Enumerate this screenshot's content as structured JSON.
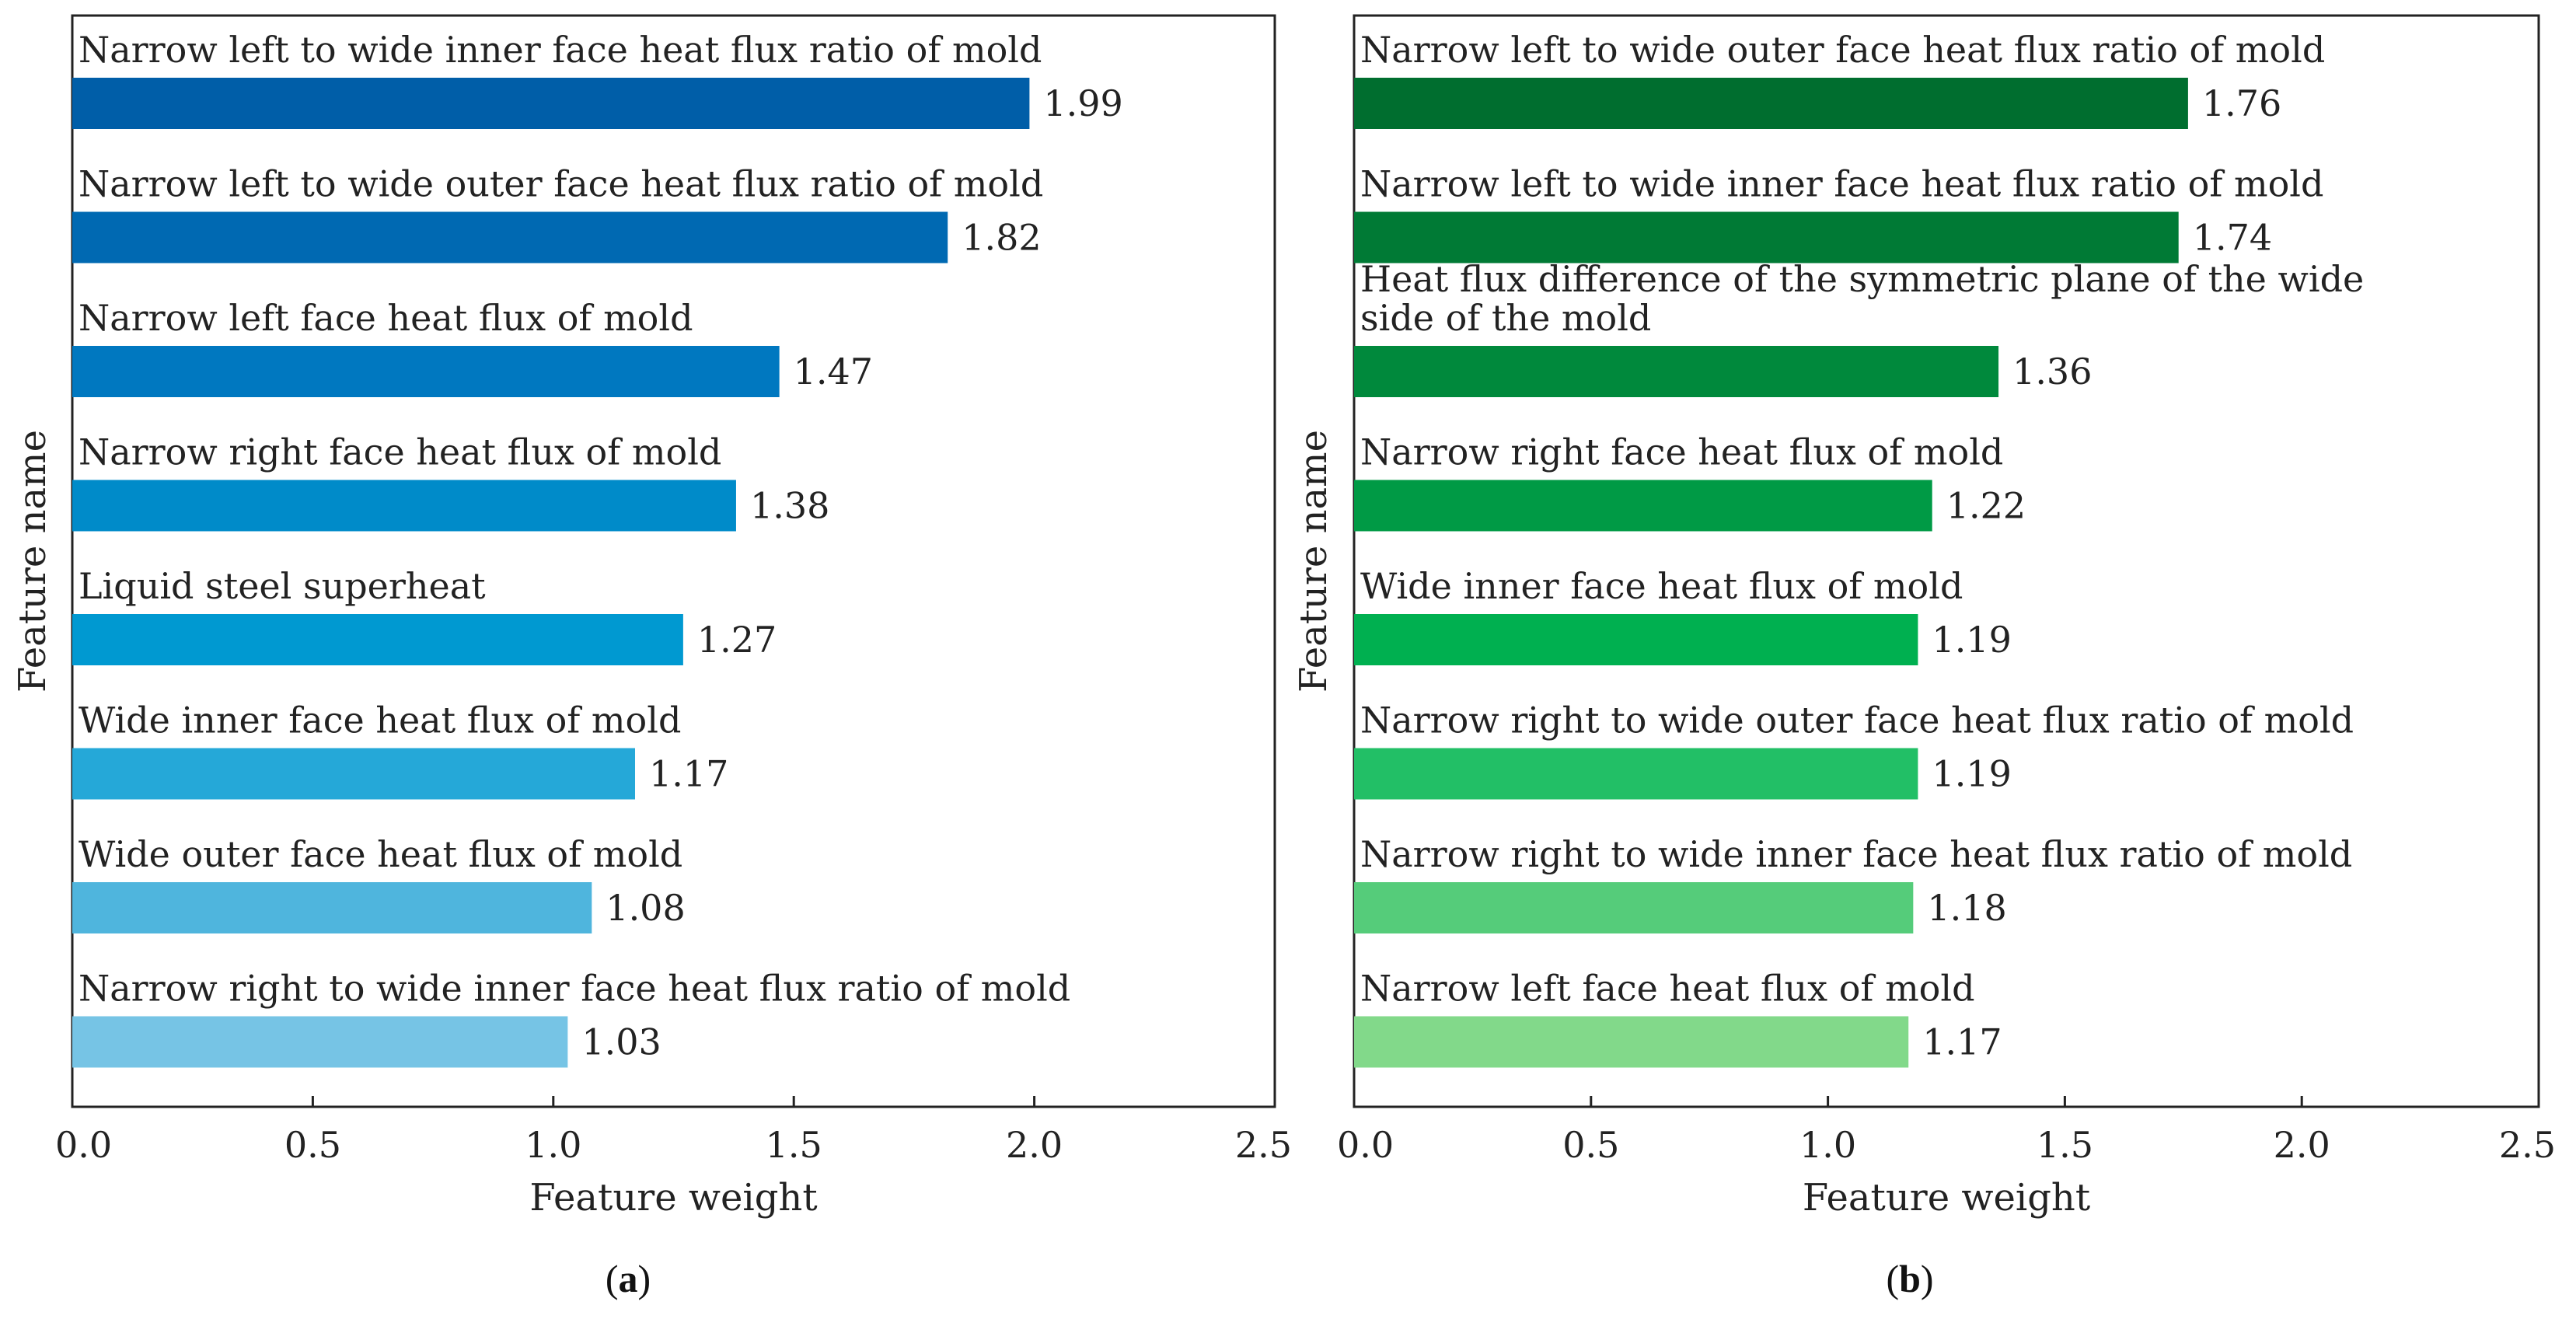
{
  "chart_data": [
    {
      "type": "bar",
      "orientation": "horizontal",
      "panel_label": "a",
      "xlabel": "Feature weight",
      "ylabel": "Feature name",
      "xlim": [
        0,
        2.5
      ],
      "xticks": [
        "0.0",
        "0.5",
        "1.0",
        "1.5",
        "2.0",
        "2.5"
      ],
      "categories": [
        [
          "Narrow left to wide inner face heat flux ratio of mold"
        ],
        [
          "Narrow left to wide outer face heat flux ratio of mold"
        ],
        [
          "Narrow left face heat flux of mold"
        ],
        [
          "Narrow right face heat flux of mold"
        ],
        [
          "Liquid steel superheat"
        ],
        [
          "Wide inner face heat flux of mold"
        ],
        [
          "Wide outer face heat flux of mold"
        ],
        [
          "Narrow right to wide inner face heat flux ratio of mold"
        ]
      ],
      "values": [
        1.99,
        1.82,
        1.47,
        1.38,
        1.27,
        1.17,
        1.08,
        1.03
      ],
      "value_labels": [
        "1.99",
        "1.82",
        "1.47",
        "1.38",
        "1.27",
        "1.17",
        "1.08",
        "1.03"
      ],
      "colors": [
        "#005ea8",
        "#0069b2",
        "#0078c0",
        "#008bc9",
        "#0099d1",
        "#25a8d8",
        "#4fb5dd",
        "#76c4e5"
      ]
    },
    {
      "type": "bar",
      "orientation": "horizontal",
      "panel_label": "b",
      "xlabel": "Feature weight",
      "ylabel": "Feature name",
      "xlim": [
        0,
        2.5
      ],
      "xticks": [
        "0.0",
        "0.5",
        "1.0",
        "1.5",
        "2.0",
        "2.5"
      ],
      "categories": [
        [
          "Narrow left to wide outer face heat flux ratio of mold"
        ],
        [
          "Narrow left to wide inner face heat flux ratio of mold"
        ],
        [
          "Heat flux difference of the symmetric plane of the wide",
          "side of the mold"
        ],
        [
          "Narrow right face heat flux of mold"
        ],
        [
          "Wide inner face heat flux of mold"
        ],
        [
          "Narrow right to wide outer face heat flux ratio of mold"
        ],
        [
          "Narrow right to wide inner face heat flux ratio of mold"
        ],
        [
          "Narrow left face heat flux of mold"
        ]
      ],
      "values": [
        1.76,
        1.74,
        1.36,
        1.22,
        1.19,
        1.19,
        1.18,
        1.17
      ],
      "value_labels": [
        "1.76",
        "1.74",
        "1.36",
        "1.22",
        "1.19",
        "1.19",
        "1.18",
        "1.17"
      ],
      "colors": [
        "#006e2f",
        "#007a35",
        "#00893c",
        "#009a45",
        "#00b050",
        "#22bf66",
        "#55cc7a",
        "#82d98a"
      ]
    }
  ]
}
